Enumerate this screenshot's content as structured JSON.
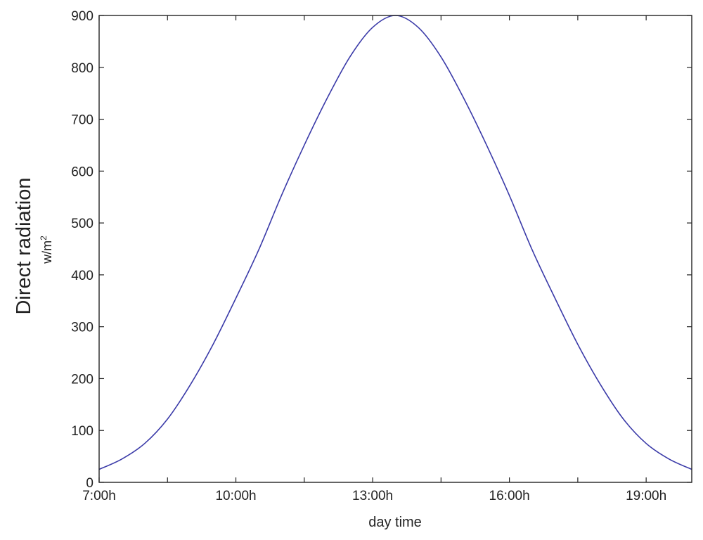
{
  "chart_data": {
    "type": "line",
    "xlabel": "day time",
    "ylabel": "Direct radiation",
    "ylabel_unit_base": "w/m",
    "ylabel_unit_exp": "2",
    "xlim": [
      7,
      20
    ],
    "ylim": [
      0,
      900
    ],
    "x_ticks": [
      {
        "value": 7,
        "label": "7:00h"
      },
      {
        "value": 10,
        "label": "10:00h"
      },
      {
        "value": 13,
        "label": "13:00h"
      },
      {
        "value": 16,
        "label": "16:00h"
      },
      {
        "value": 19,
        "label": "19:00h"
      }
    ],
    "x_minor_ticks": [
      8.5,
      11.5,
      14.5,
      17.5
    ],
    "y_ticks": [
      {
        "value": 0,
        "label": "0"
      },
      {
        "value": 100,
        "label": "100"
      },
      {
        "value": 200,
        "label": "200"
      },
      {
        "value": 300,
        "label": "300"
      },
      {
        "value": 400,
        "label": "400"
      },
      {
        "value": 500,
        "label": "500"
      },
      {
        "value": 600,
        "label": "600"
      },
      {
        "value": 700,
        "label": "700"
      },
      {
        "value": 800,
        "label": "800"
      },
      {
        "value": 900,
        "label": "900"
      }
    ],
    "grid": false,
    "series": [
      {
        "color": "#3a3aa8",
        "x": [
          7.0,
          7.5,
          8.0,
          8.5,
          9.0,
          9.5,
          10.0,
          10.5,
          11.0,
          11.5,
          12.0,
          12.5,
          13.0,
          13.5,
          14.0,
          14.5,
          15.0,
          15.5,
          16.0,
          16.5,
          17.0,
          17.5,
          18.0,
          18.5,
          19.0,
          19.5,
          20.0
        ],
        "y": [
          25,
          45,
          75,
          122,
          188,
          266,
          355,
          448,
          553,
          650,
          740,
          820,
          877,
          900,
          877,
          820,
          740,
          650,
          553,
          448,
          355,
          266,
          188,
          122,
          75,
          45,
          25
        ]
      }
    ]
  }
}
